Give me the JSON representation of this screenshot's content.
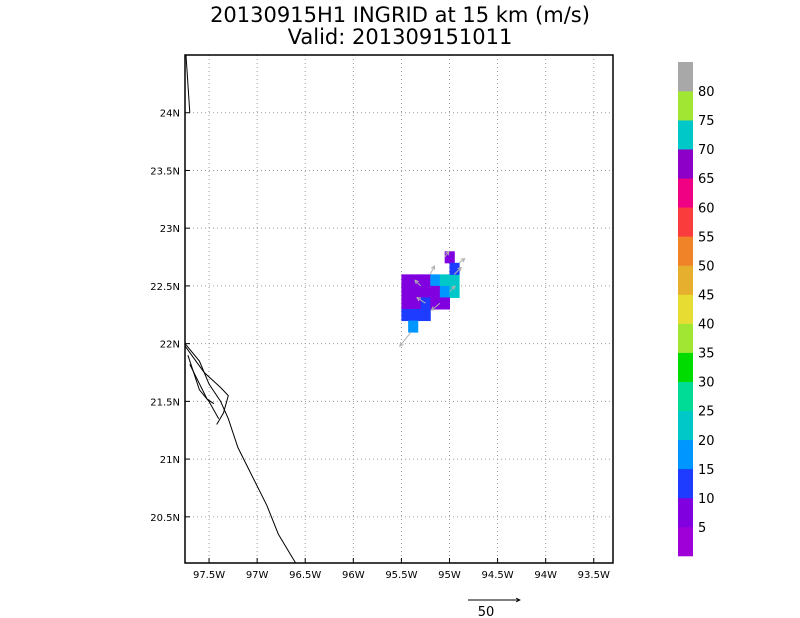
{
  "title": {
    "line1": "20130915H1 INGRID at 15 km (m/s)",
    "line2": "Valid: 201309151011"
  },
  "map": {
    "lon_range": [
      -97.75,
      -93.3
    ],
    "lat_range": [
      20.1,
      24.5
    ],
    "lon_ticks": [
      {
        "value": -97.5,
        "label": "97.5W"
      },
      {
        "value": -97.0,
        "label": "97W"
      },
      {
        "value": -96.5,
        "label": "96.5W"
      },
      {
        "value": -96.0,
        "label": "96W"
      },
      {
        "value": -95.5,
        "label": "95.5W"
      },
      {
        "value": -95.0,
        "label": "95W"
      },
      {
        "value": -94.5,
        "label": "94.5W"
      },
      {
        "value": -94.0,
        "label": "94W"
      },
      {
        "value": -93.5,
        "label": "93.5W"
      }
    ],
    "lat_ticks": [
      {
        "value": 20.5,
        "label": "20.5N"
      },
      {
        "value": 21.0,
        "label": "21N"
      },
      {
        "value": 21.5,
        "label": "21.5N"
      },
      {
        "value": 22.0,
        "label": "22N"
      },
      {
        "value": 22.5,
        "label": "22.5N"
      },
      {
        "value": 23.0,
        "label": "23N"
      },
      {
        "value": 23.5,
        "label": "23.5N"
      },
      {
        "value": 24.0,
        "label": "24N"
      }
    ],
    "grid": true,
    "coastlines": [
      [
        [
          -97.74,
          24.5
        ],
        [
          -97.7,
          24.0
        ]
      ],
      [
        [
          -97.75,
          22.0
        ],
        [
          -97.6,
          21.85
        ],
        [
          -97.5,
          21.65
        ],
        [
          -97.38,
          21.5
        ],
        [
          -97.3,
          21.35
        ],
        [
          -97.2,
          21.1
        ],
        [
          -97.05,
          20.85
        ],
        [
          -96.9,
          20.6
        ],
        [
          -96.78,
          20.35
        ],
        [
          -96.6,
          20.1
        ]
      ],
      [
        [
          -97.75,
          21.98
        ],
        [
          -97.55,
          21.75
        ],
        [
          -97.38,
          21.62
        ],
        [
          -97.3,
          21.55
        ],
        [
          -97.35,
          21.4
        ],
        [
          -97.42,
          21.3
        ]
      ],
      [
        [
          -97.72,
          21.9
        ],
        [
          -97.6,
          21.6
        ],
        [
          -97.5,
          21.5
        ],
        [
          -97.4,
          21.35
        ]
      ],
      [
        [
          -97.7,
          21.82
        ],
        [
          -97.52,
          21.52
        ],
        [
          -97.45,
          21.48
        ]
      ]
    ],
    "wind_cells": [
      {
        "lon": -95.45,
        "lat": 22.55,
        "speed": 5
      },
      {
        "lon": -95.35,
        "lat": 22.55,
        "speed": 5
      },
      {
        "lon": -95.25,
        "lat": 22.55,
        "speed": 5
      },
      {
        "lon": -95.15,
        "lat": 22.55,
        "speed": 15
      },
      {
        "lon": -95.05,
        "lat": 22.55,
        "speed": 20
      },
      {
        "lon": -94.95,
        "lat": 22.55,
        "speed": 20
      },
      {
        "lon": -95.45,
        "lat": 22.45,
        "speed": 5
      },
      {
        "lon": -95.35,
        "lat": 22.45,
        "speed": 5
      },
      {
        "lon": -95.25,
        "lat": 22.45,
        "speed": 5
      },
      {
        "lon": -95.15,
        "lat": 22.45,
        "speed": 5
      },
      {
        "lon": -95.05,
        "lat": 22.45,
        "speed": 15
      },
      {
        "lon": -94.95,
        "lat": 22.45,
        "speed": 20
      },
      {
        "lon": -95.45,
        "lat": 22.35,
        "speed": 5
      },
      {
        "lon": -95.35,
        "lat": 22.35,
        "speed": 5
      },
      {
        "lon": -95.25,
        "lat": 22.35,
        "speed": 10
      },
      {
        "lon": -95.15,
        "lat": 22.35,
        "speed": 5
      },
      {
        "lon": -95.05,
        "lat": 22.35,
        "speed": 5
      },
      {
        "lon": -95.45,
        "lat": 22.25,
        "speed": 10
      },
      {
        "lon": -95.35,
        "lat": 22.25,
        "speed": 10
      },
      {
        "lon": -95.25,
        "lat": 22.25,
        "speed": 10
      },
      {
        "lon": -95.38,
        "lat": 22.15,
        "speed": 15
      },
      {
        "lon": -95.0,
        "lat": 22.75,
        "speed": 5
      },
      {
        "lon": -94.95,
        "lat": 22.65,
        "speed": 10
      }
    ],
    "wind_vectors": [
      {
        "lon": -95.4,
        "lat": 22.1,
        "u": -8,
        "v": -10
      },
      {
        "lon": -95.25,
        "lat": 22.35,
        "u": -6,
        "v": 4
      },
      {
        "lon": -95.1,
        "lat": 22.35,
        "u": -6,
        "v": -5
      },
      {
        "lon": -95.0,
        "lat": 22.45,
        "u": 4,
        "v": 4
      },
      {
        "lon": -95.2,
        "lat": 22.6,
        "u": 3,
        "v": 6
      },
      {
        "lon": -94.95,
        "lat": 22.6,
        "u": 5,
        "v": 5
      },
      {
        "lon": -95.05,
        "lat": 22.75,
        "u": 3,
        "v": 4
      },
      {
        "lon": -95.3,
        "lat": 22.5,
        "u": -4,
        "v": 4
      },
      {
        "lon": -94.9,
        "lat": 22.7,
        "u": 4,
        "v": 3
      }
    ],
    "reference_vector": {
      "length": 50,
      "label": "50"
    }
  },
  "colorbar": {
    "colors": [
      "#a000d8",
      "#8000e0",
      "#1e3cff",
      "#0096ff",
      "#00c8c8",
      "#00dc96",
      "#00dc00",
      "#a0e632",
      "#e6dc32",
      "#e6af2d",
      "#f08228",
      "#fa3c3c",
      "#f00082",
      "#8c00c8",
      "#00c8c8",
      "#a0e632",
      "#a8a8a8"
    ],
    "labels": [
      "5",
      "10",
      "15",
      "20",
      "25",
      "30",
      "35",
      "40",
      "45",
      "50",
      "55",
      "60",
      "65",
      "70",
      "75",
      "80"
    ]
  }
}
